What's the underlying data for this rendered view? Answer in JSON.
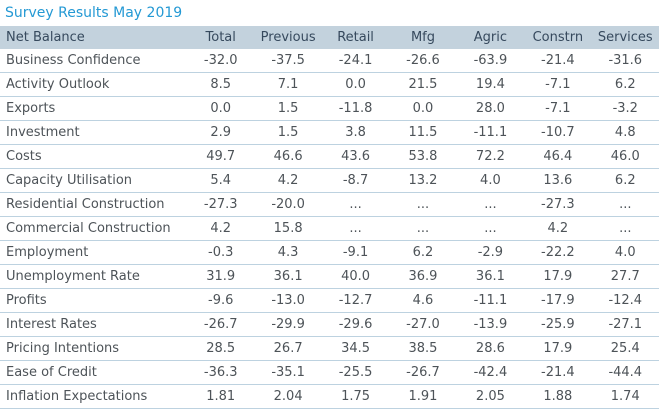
{
  "title": "Survey Results May 2019",
  "colors": {
    "title_text": "#2499d4",
    "header_background": "#c3d2dd",
    "header_text": "#36495d",
    "body_text": "#4d5358",
    "row_divider": "#bdd2e0"
  },
  "chart_data": {
    "type": "table",
    "title": "Survey Results May 2019",
    "columns": [
      "Net Balance",
      "Total",
      "Previous",
      "Retail",
      "Mfg",
      "Agric",
      "Constrn",
      "Services"
    ],
    "rows": [
      [
        "Business Confidence",
        "-32.0",
        "-37.5",
        "-24.1",
        "-26.6",
        "-63.9",
        "-21.4",
        "-31.6"
      ],
      [
        "Activity Outlook",
        "8.5",
        "7.1",
        "0.0",
        "21.5",
        "19.4",
        "-7.1",
        "6.2"
      ],
      [
        "Exports",
        "0.0",
        "1.5",
        "-11.8",
        "0.0",
        "28.0",
        "-7.1",
        "-3.2"
      ],
      [
        "Investment",
        "2.9",
        "1.5",
        "3.8",
        "11.5",
        "-11.1",
        "-10.7",
        "4.8"
      ],
      [
        "Costs",
        "49.7",
        "46.6",
        "43.6",
        "53.8",
        "72.2",
        "46.4",
        "46.0"
      ],
      [
        "Capacity Utilisation",
        "5.4",
        "4.2",
        "-8.7",
        "13.2",
        "4.0",
        "13.6",
        "6.2"
      ],
      [
        "Residential Construction",
        "-27.3",
        "-20.0",
        "...",
        "...",
        "...",
        "-27.3",
        "..."
      ],
      [
        "Commercial Construction",
        "4.2",
        "15.8",
        "...",
        "...",
        "...",
        "4.2",
        "..."
      ],
      [
        "Employment",
        "-0.3",
        "4.3",
        "-9.1",
        "6.2",
        "-2.9",
        "-22.2",
        "4.0"
      ],
      [
        "Unemployment Rate",
        "31.9",
        "36.1",
        "40.0",
        "36.9",
        "36.1",
        "17.9",
        "27.7"
      ],
      [
        "Profits",
        "-9.6",
        "-13.0",
        "-12.7",
        "4.6",
        "-11.1",
        "-17.9",
        "-12.4"
      ],
      [
        "Interest Rates",
        "-26.7",
        "-29.9",
        "-29.6",
        "-27.0",
        "-13.9",
        "-25.9",
        "-27.1"
      ],
      [
        "Pricing Intentions",
        "28.5",
        "26.7",
        "34.5",
        "38.5",
        "28.6",
        "17.9",
        "25.4"
      ],
      [
        "Ease of Credit",
        "-36.3",
        "-35.1",
        "-25.5",
        "-26.7",
        "-42.4",
        "-21.4",
        "-44.4"
      ],
      [
        "Inflation Expectations",
        "1.81",
        "2.04",
        "1.75",
        "1.91",
        "2.05",
        "1.88",
        "1.74"
      ]
    ]
  }
}
